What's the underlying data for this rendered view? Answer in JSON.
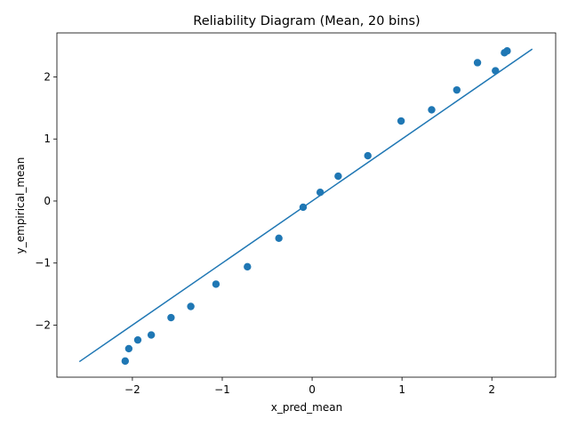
{
  "chart_data": {
    "type": "scatter",
    "title": "Reliability Diagram (Mean, 20 bins)",
    "xlabel": "x_pred_mean",
    "ylabel": "y_empirical_mean",
    "xlim": [
      -2.84,
      2.71
    ],
    "ylim": [
      -2.84,
      2.71
    ],
    "xticks": [
      -2,
      -1,
      0,
      1,
      2
    ],
    "yticks": [
      -2,
      -1,
      0,
      1,
      2
    ],
    "xtick_labels": [
      "−2",
      "−1",
      "0",
      "1",
      "2"
    ],
    "ytick_labels": [
      "−2",
      "−1",
      "0",
      "1",
      "2"
    ],
    "grid": false,
    "reference_line": {
      "x": [
        -2.59,
        2.45
      ],
      "y": [
        -2.59,
        2.45
      ]
    },
    "series": [
      {
        "x": [
          -2.08,
          -2.04,
          -1.94,
          -1.79,
          -1.57,
          -1.35,
          -1.07,
          -0.72,
          -0.37,
          -0.1,
          0.09,
          0.29,
          0.62,
          0.99,
          1.33,
          1.61,
          1.84,
          2.04,
          2.14,
          2.17
        ],
        "y": [
          -2.58,
          -2.38,
          -2.24,
          -2.16,
          -1.88,
          -1.7,
          -1.34,
          -1.06,
          -0.6,
          -0.1,
          0.14,
          0.4,
          0.73,
          1.29,
          1.47,
          1.79,
          2.23,
          2.1,
          2.39,
          2.42
        ]
      }
    ],
    "color": "#1f77b4"
  }
}
